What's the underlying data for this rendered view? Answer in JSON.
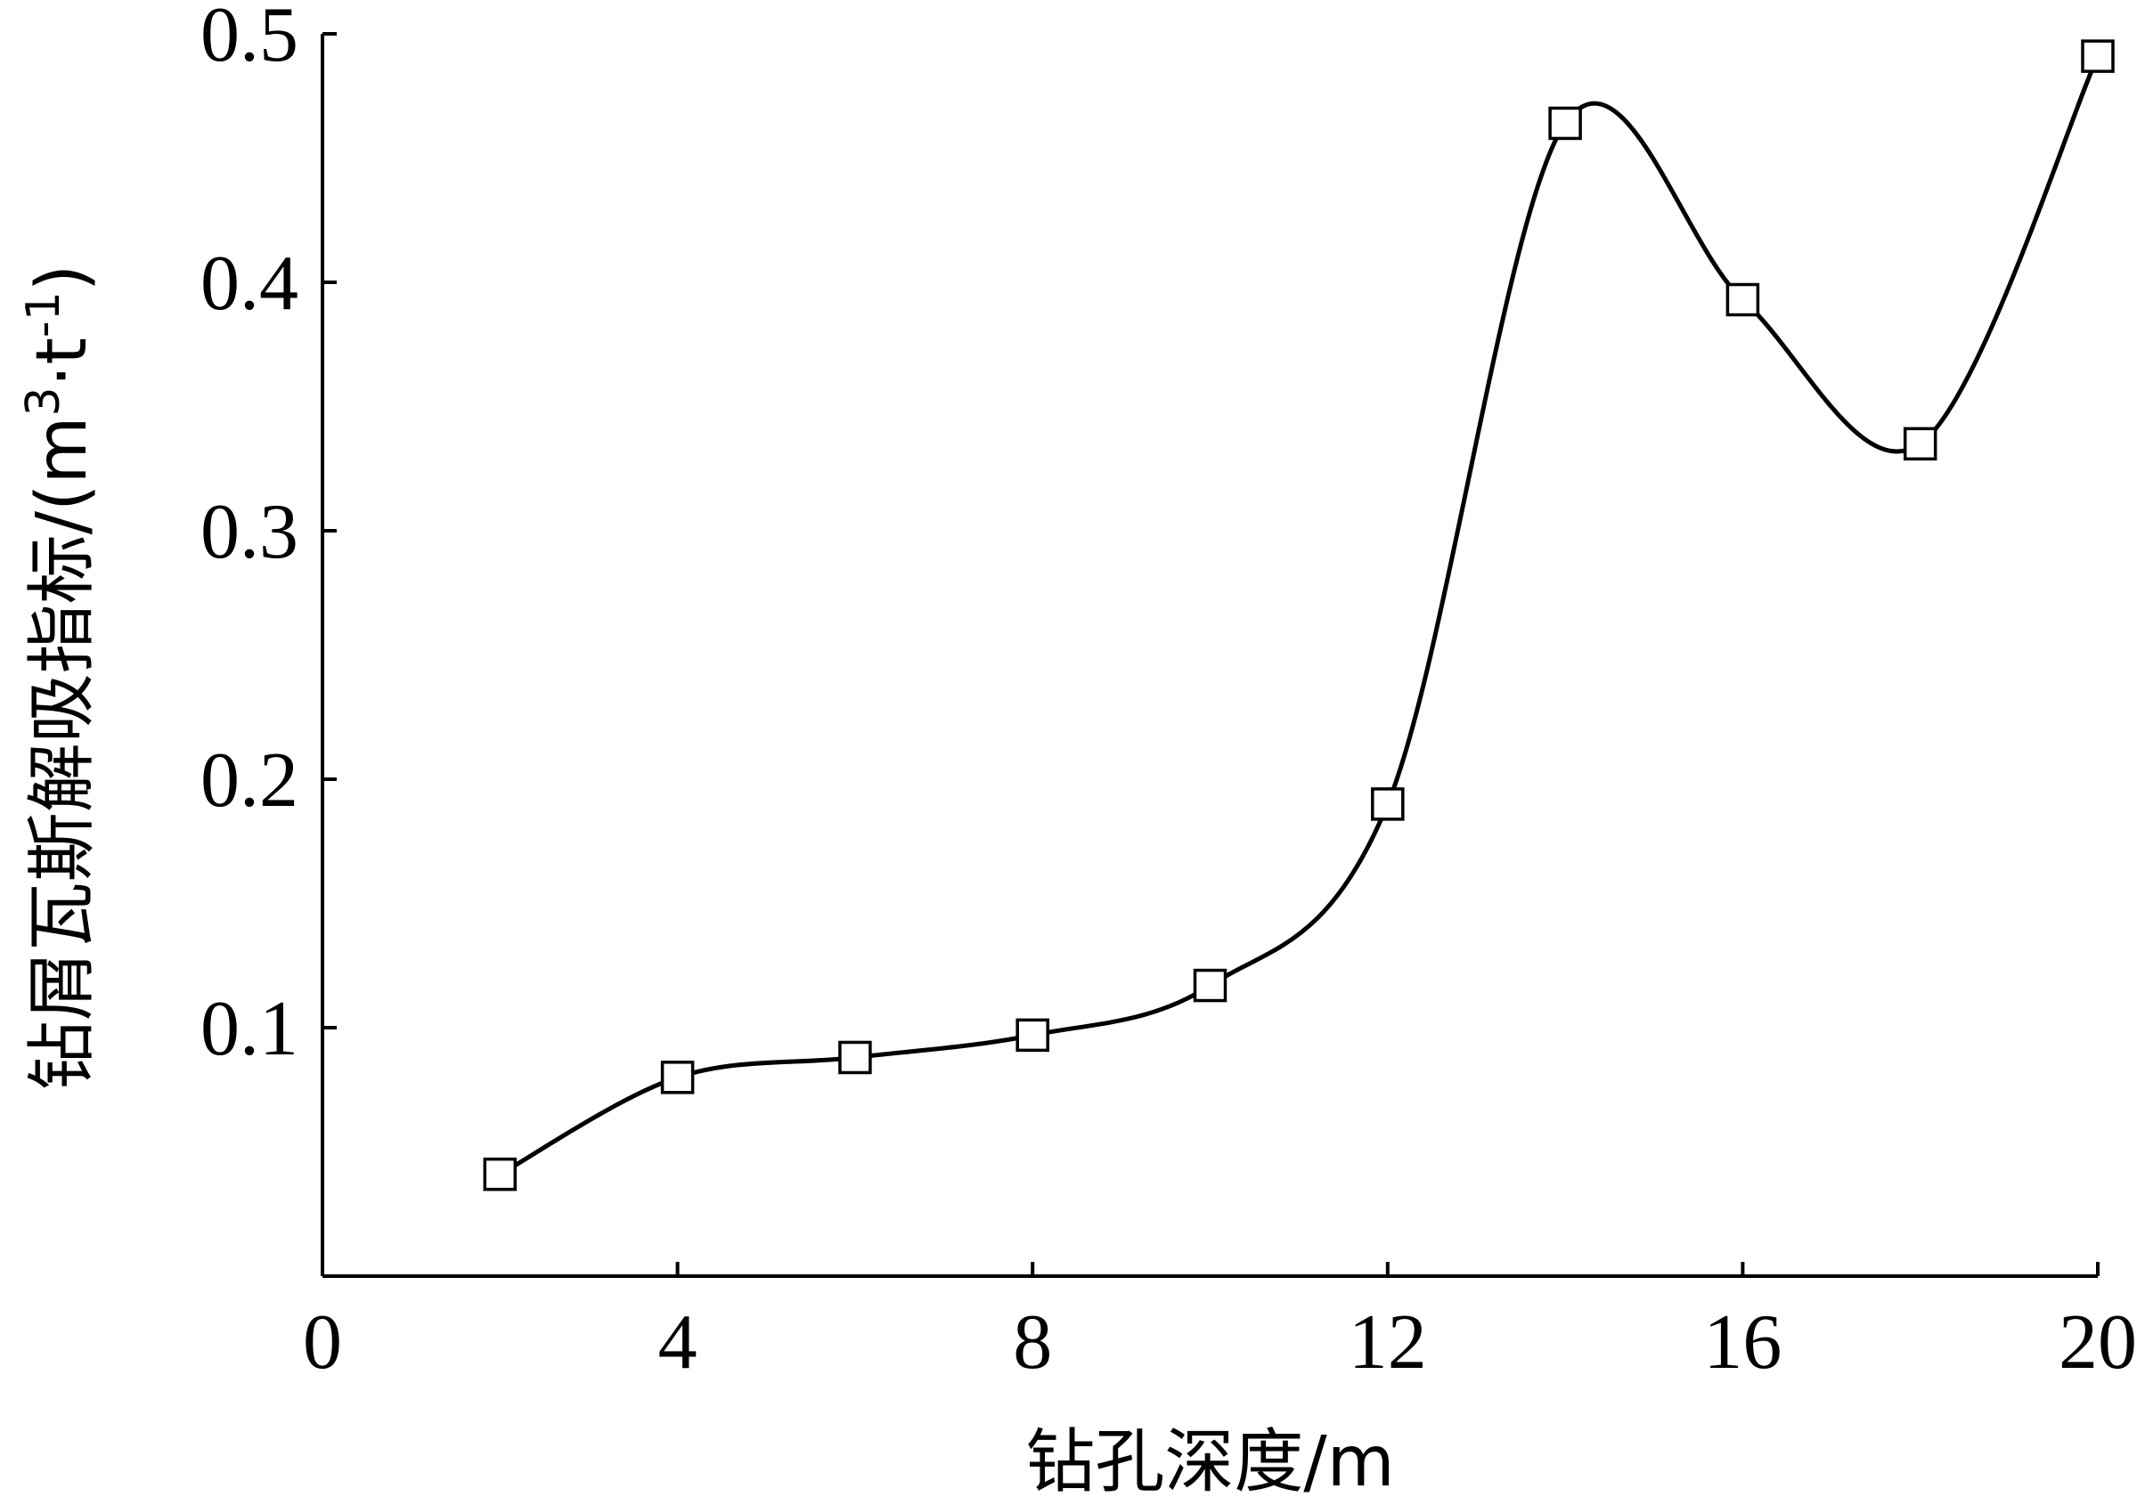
{
  "chart_data": {
    "type": "line",
    "xlabel": "钻孔深度/m",
    "ylabel_text": "钻屑瓦斯解吸指标/(m",
    "ylabel_sup1": "3",
    "ylabel_dot": "·",
    "ylabel_t": "t",
    "ylabel_sup2": "-1",
    "ylabel_close": ")",
    "xlim": [
      0,
      20
    ],
    "ylim": [
      0,
      0.5
    ],
    "x_ticks": [
      0,
      4,
      8,
      12,
      16,
      20
    ],
    "x_tick_labels": [
      "0",
      "4",
      "8",
      "12",
      "16",
      "20"
    ],
    "y_ticks": [
      0.1,
      0.2,
      0.3,
      0.4,
      0.5
    ],
    "y_tick_labels": [
      "0.1",
      "0.2",
      "0.3",
      "0.4",
      "0.5"
    ],
    "grid": false,
    "series": [
      {
        "marker": "square",
        "x": [
          2,
          4,
          6,
          8,
          10,
          12,
          14,
          16,
          18,
          20
        ],
        "y": [
          0.041,
          0.08,
          0.088,
          0.097,
          0.117,
          0.19,
          0.464,
          0.393,
          0.335,
          0.491
        ]
      }
    ]
  }
}
